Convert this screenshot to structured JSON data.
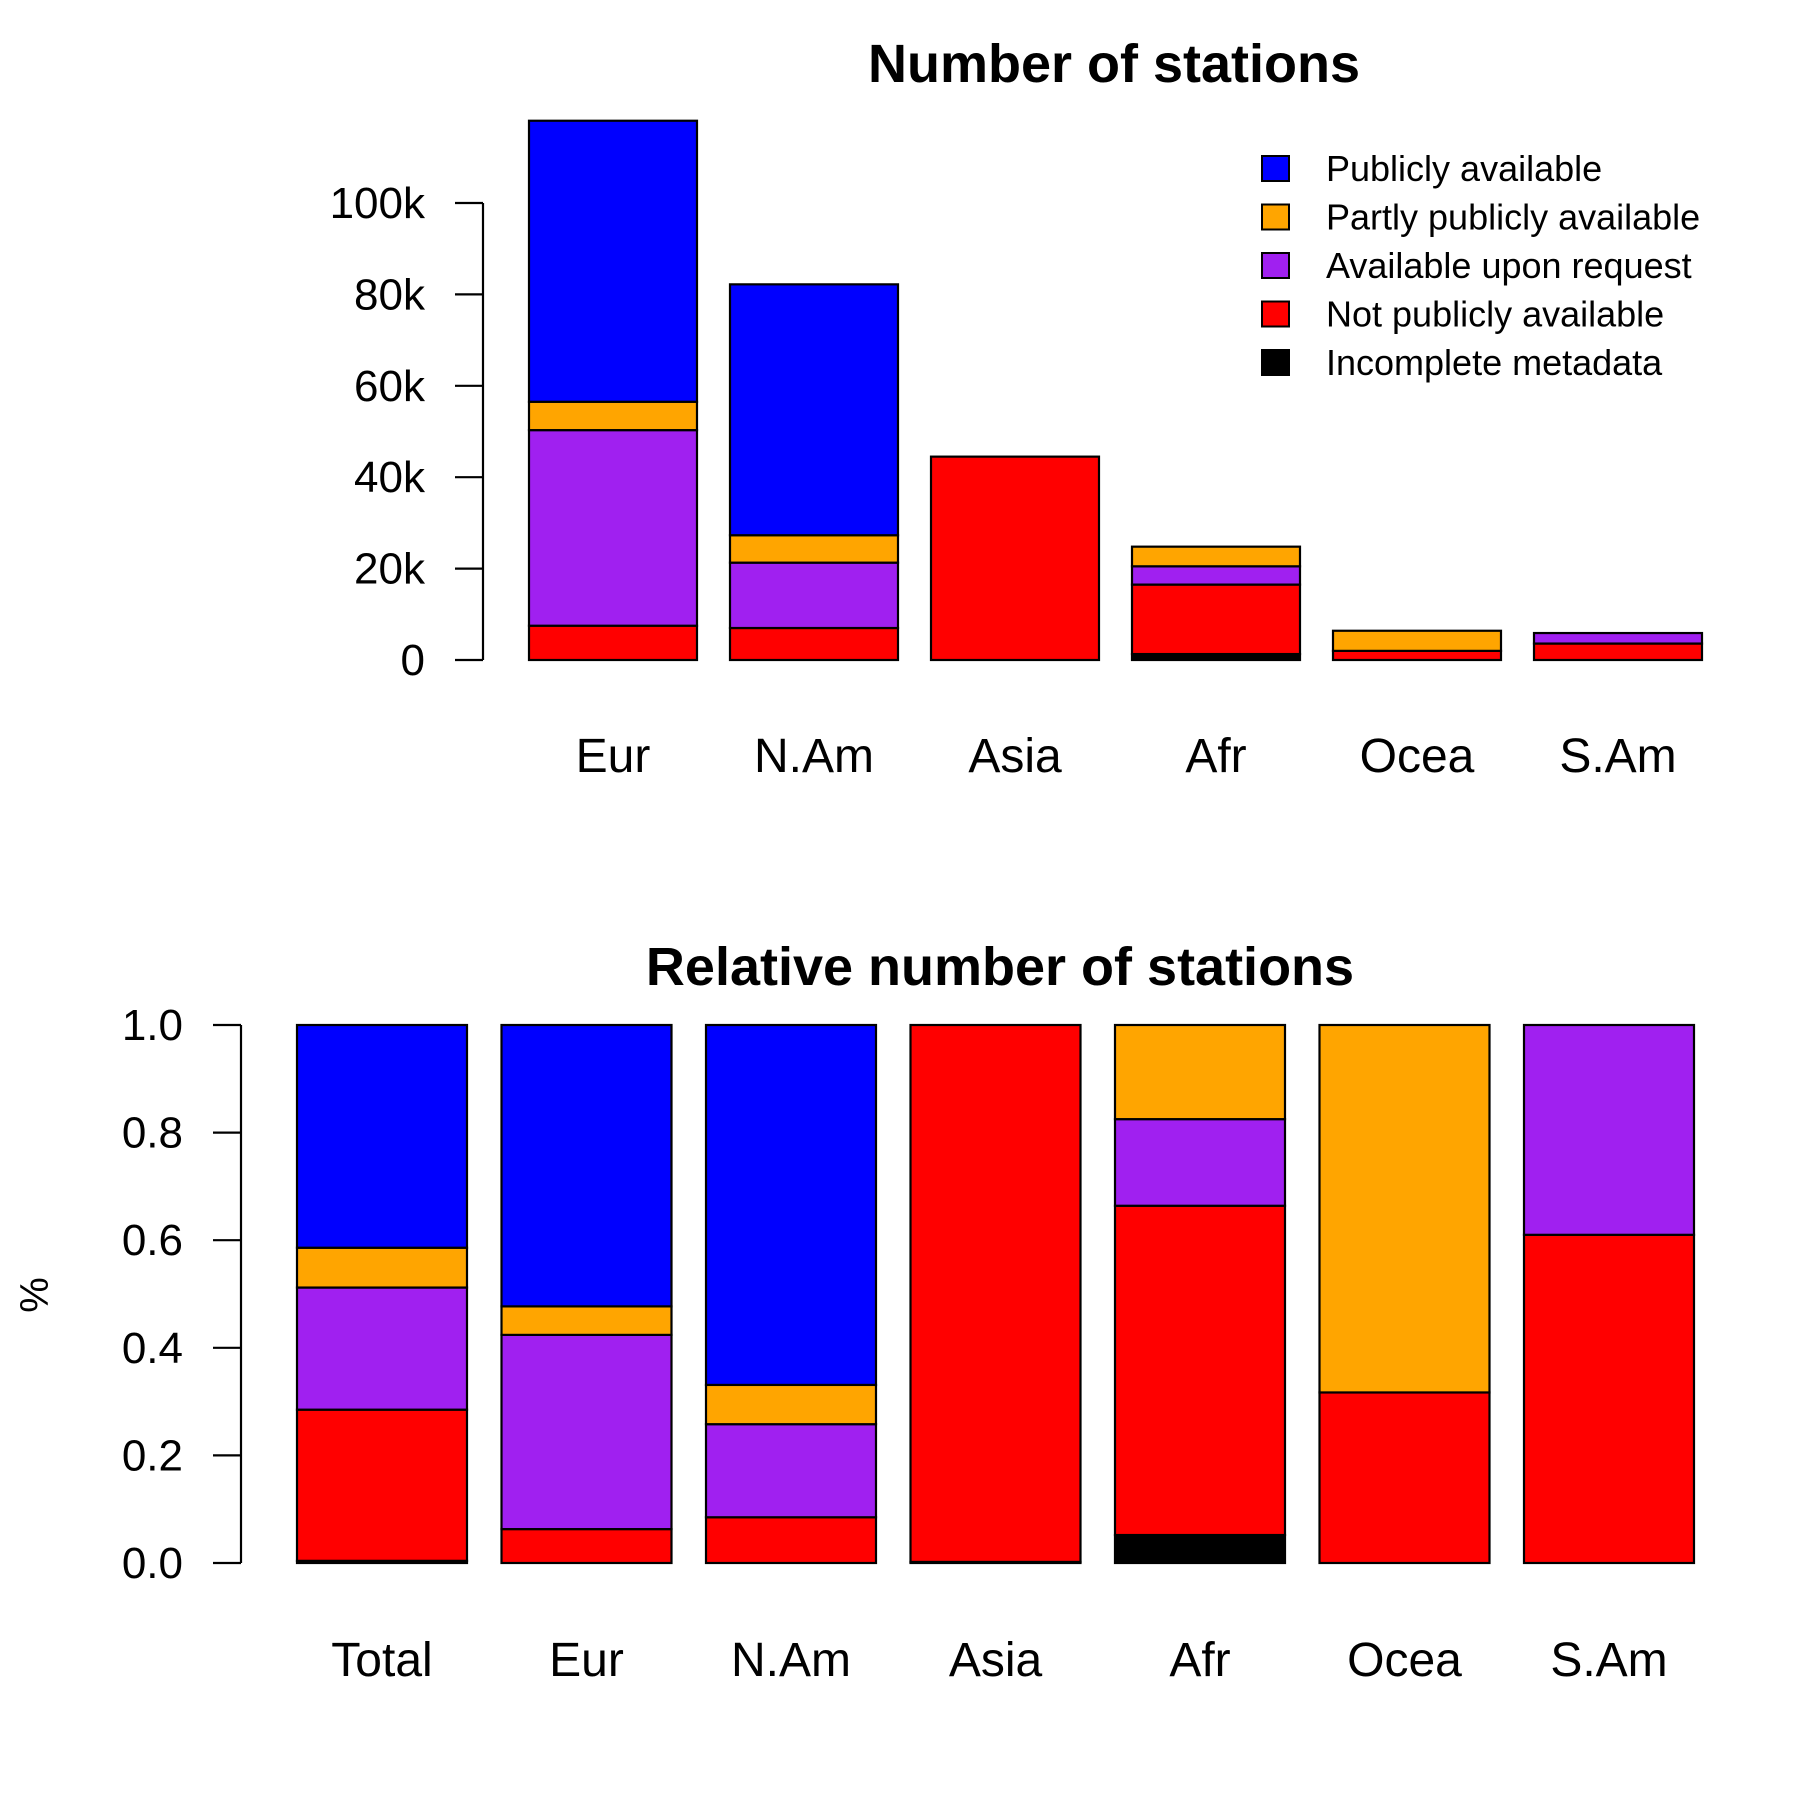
{
  "chart_data": [
    {
      "type": "bar",
      "stacked": true,
      "title": "Number of stations",
      "xlabel": "",
      "ylabel": "",
      "ylim": [
        0,
        120000
      ],
      "yticks": [
        0,
        20000,
        40000,
        60000,
        80000,
        100000
      ],
      "ytick_labels": [
        "0",
        "20k",
        "40k",
        "60k",
        "80k",
        "100k"
      ],
      "categories": [
        "Eur",
        "N.Am",
        "Asia",
        "Afr",
        "Ocea",
        "S.Am"
      ],
      "series": [
        {
          "name": "Incomplete metadata",
          "color": "#000000",
          "values": [
            0,
            0,
            0,
            1300,
            0,
            0
          ]
        },
        {
          "name": "Not publicly available",
          "color": "#ff0000",
          "values": [
            7500,
            7000,
            44500,
            15200,
            2000,
            3600
          ]
        },
        {
          "name": "Available upon request",
          "color": "#a020f0",
          "values": [
            42800,
            14300,
            0,
            4000,
            0,
            2300
          ]
        },
        {
          "name": "Partly publicly available",
          "color": "#ffa500",
          "values": [
            6200,
            6000,
            0,
            4300,
            4400,
            0
          ]
        },
        {
          "name": "Publicly available",
          "color": "#0000ff",
          "values": [
            61500,
            54900,
            0,
            0,
            0,
            0
          ]
        }
      ],
      "legend": {
        "position": "top-right",
        "order": [
          "Publicly available",
          "Partly publicly available",
          "Available upon request",
          "Not publicly available",
          "Incomplete metadata"
        ]
      },
      "grid": false
    },
    {
      "type": "bar",
      "stacked": true,
      "title": "Relative number of stations",
      "xlabel": "",
      "ylabel": "%",
      "ylim": [
        0,
        1
      ],
      "yticks": [
        0,
        0.2,
        0.4,
        0.6,
        0.8,
        1.0
      ],
      "ytick_labels": [
        "0.0",
        "0.2",
        "0.4",
        "0.6",
        "0.8",
        "1.0"
      ],
      "categories": [
        "Total",
        "Eur",
        "N.Am",
        "Asia",
        "Afr",
        "Ocea",
        "S.Am"
      ],
      "series": [
        {
          "name": "Incomplete metadata",
          "color": "#000000",
          "values": [
            0.004,
            0,
            0,
            0.002,
            0.052,
            0,
            0
          ]
        },
        {
          "name": "Not publicly available",
          "color": "#ff0000",
          "values": [
            0.281,
            0.063,
            0.085,
            0.998,
            0.612,
            0.317,
            0.61
          ]
        },
        {
          "name": "Available upon request",
          "color": "#a020f0",
          "values": [
            0.227,
            0.361,
            0.173,
            0,
            0.161,
            0,
            0.39
          ]
        },
        {
          "name": "Partly publicly available",
          "color": "#ffa500",
          "values": [
            0.074,
            0.053,
            0.073,
            0,
            0.175,
            0.683,
            0
          ]
        },
        {
          "name": "Publicly available",
          "color": "#0000ff",
          "values": [
            0.414,
            0.523,
            0.669,
            0,
            0,
            0,
            0
          ]
        }
      ],
      "grid": false
    }
  ]
}
